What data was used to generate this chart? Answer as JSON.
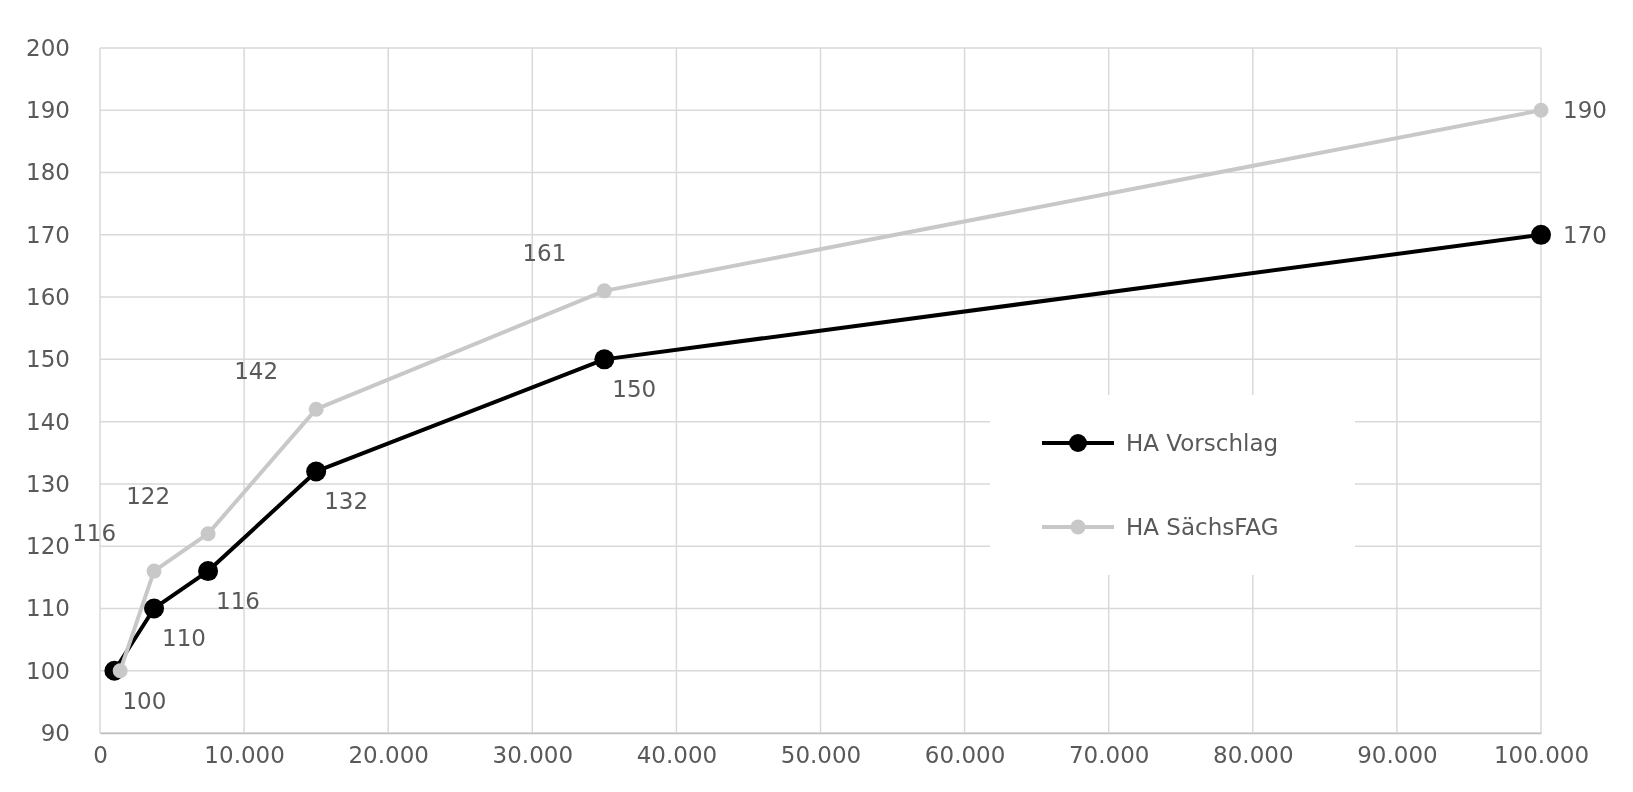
{
  "chart_data": {
    "type": "line",
    "xlim": [
      0,
      100000
    ],
    "xticks": [
      0,
      {
        "value": 10000,
        "label": "10.000"
      },
      {
        "value": 20000,
        "label": "20.000"
      },
      {
        "value": 30000,
        "label": "30.000"
      },
      {
        "value": 40000,
        "label": "40.000"
      },
      {
        "value": 50000,
        "label": "50.000"
      },
      {
        "value": 60000,
        "label": "60.000"
      },
      {
        "value": 70000,
        "label": "70.000"
      },
      {
        "value": 80000,
        "label": "80.000"
      },
      {
        "value": 90000,
        "label": "90.000"
      },
      {
        "value": 100000,
        "label": "100.000"
      }
    ],
    "ylim": [
      90,
      200
    ],
    "yticks": [
      90,
      100,
      110,
      120,
      130,
      140,
      150,
      160,
      170,
      180,
      190,
      200
    ],
    "grid": true,
    "legend": "right",
    "marker": "circle",
    "line_style": "solid",
    "series": [
      {
        "name": "HA Vorschlag",
        "color": "#000000",
        "x": [
          1000,
          3750,
          7500,
          15000,
          35000,
          100000
        ],
        "values": [
          100,
          110,
          116,
          132,
          150,
          170
        ],
        "value_labels": [
          "100",
          "110",
          "116",
          "132",
          "150",
          "170"
        ]
      },
      {
        "name": "HA SächsFAG",
        "color": "#c8c8c8",
        "x": [
          1400,
          3750,
          7500,
          15000,
          35000,
          100000
        ],
        "values": [
          100,
          116,
          122,
          142,
          161,
          190
        ],
        "value_labels": [
          null,
          "116",
          "122",
          "142",
          "161",
          "190"
        ]
      }
    ]
  }
}
